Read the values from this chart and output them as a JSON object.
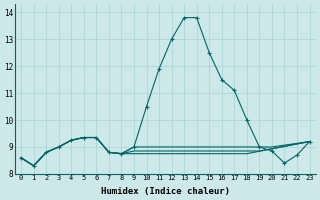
{
  "xlabel": "Humidex (Indice chaleur)",
  "bg_color": "#cce8e8",
  "grid_color": "#b0d4d4",
  "line_color": "#006666",
  "xlim": [
    -0.5,
    23.5
  ],
  "ylim": [
    8.0,
    14.3
  ],
  "yticks": [
    8,
    9,
    10,
    11,
    12,
    13,
    14
  ],
  "xticks": [
    0,
    1,
    2,
    3,
    4,
    5,
    6,
    7,
    8,
    9,
    10,
    11,
    12,
    13,
    14,
    15,
    16,
    17,
    18,
    19,
    20,
    21,
    22,
    23
  ],
  "series_main": [
    8.6,
    8.3,
    8.8,
    9.0,
    9.25,
    9.35,
    9.35,
    8.8,
    8.75,
    9.0,
    10.5,
    11.9,
    13.0,
    13.8,
    13.8,
    12.5,
    11.5,
    11.1,
    10.0,
    9.0,
    8.85,
    8.4,
    8.7,
    9.2
  ],
  "series_flat1_x": [
    0,
    1,
    2,
    3,
    4,
    5,
    6,
    7,
    8,
    9,
    10,
    11,
    12,
    13,
    14,
    15,
    16,
    17,
    18,
    19,
    20,
    23
  ],
  "series_flat1_y": [
    8.6,
    8.3,
    8.8,
    9.0,
    9.25,
    9.35,
    9.35,
    8.8,
    8.75,
    9.0,
    9.0,
    9.0,
    9.0,
    9.0,
    9.0,
    9.0,
    9.0,
    9.0,
    9.0,
    9.0,
    9.0,
    9.2
  ],
  "series_flat2_x": [
    0,
    1,
    2,
    3,
    4,
    5,
    6,
    7,
    8,
    9,
    10,
    11,
    12,
    13,
    14,
    15,
    16,
    17,
    18,
    19,
    23
  ],
  "series_flat2_y": [
    8.6,
    8.3,
    8.8,
    9.0,
    9.25,
    9.35,
    9.35,
    8.8,
    8.75,
    8.85,
    8.85,
    8.85,
    8.85,
    8.85,
    8.85,
    8.85,
    8.85,
    8.85,
    8.85,
    8.85,
    9.2
  ],
  "series_flat3_x": [
    0,
    1,
    2,
    3,
    4,
    5,
    6,
    7,
    8,
    9,
    10,
    11,
    12,
    13,
    14,
    15,
    16,
    17,
    18,
    23
  ],
  "series_flat3_y": [
    8.6,
    8.3,
    8.8,
    9.0,
    9.25,
    9.35,
    9.35,
    8.8,
    8.75,
    8.75,
    8.75,
    8.75,
    8.75,
    8.75,
    8.75,
    8.75,
    8.75,
    8.75,
    8.75,
    9.2
  ]
}
